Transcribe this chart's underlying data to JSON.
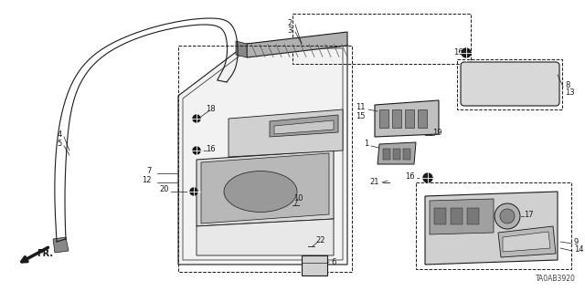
{
  "bg_color": "#ffffff",
  "line_color": "#1a1a1a",
  "label_fontsize": 6.0,
  "diagram_id": "TA0AB3920",
  "fr_label": "FR.",
  "figsize": [
    6.4,
    3.19
  ],
  "dpi": 100
}
